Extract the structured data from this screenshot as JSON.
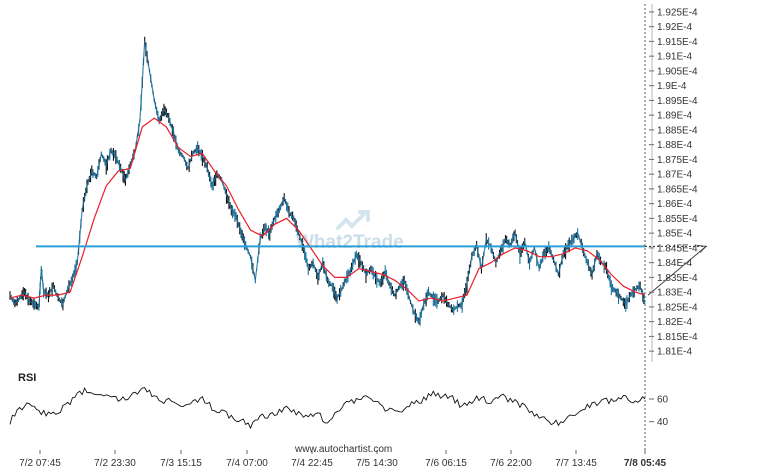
{
  "chart_data": {
    "type": "candlestick",
    "instrument": "",
    "y_axis": {
      "ticks": [
        0.0001925,
        0.000192,
        0.0001915,
        0.000191,
        0.0001905,
        0.00019,
        0.0001895,
        0.000189,
        0.0001885,
        0.000188,
        0.0001875,
        0.000187,
        0.0001865,
        0.000186,
        0.0001855,
        0.000185,
        0.0001845,
        0.000184,
        0.0001835,
        0.000183,
        0.0001825,
        0.000182,
        0.0001815,
        0.000181
      ],
      "tick_labels": [
        "1.925E-4",
        "1.92E-4",
        "1.915E-4",
        "1.91E-4",
        "1.905E-4",
        "1.9E-4",
        "1.895E-4",
        "1.89E-4",
        "1.885E-4",
        "1.88E-4",
        "1.875E-4",
        "1.87E-4",
        "1.865E-4",
        "1.86E-4",
        "1.855E-4",
        "1.85E-4",
        "1.845E-4",
        "1.84E-4",
        "1.835E-4",
        "1.83E-4",
        "1.825E-4",
        "1.82E-4",
        "1.815E-4",
        "1.81E-4"
      ],
      "range": [
        0.0001807,
        0.0001927
      ]
    },
    "x_axis": {
      "tick_labels": [
        "7/2 07:45",
        "7/2 23:30",
        "7/3 15:15",
        "7/4 07:00",
        "7/4 22:45",
        "7/5 14:30",
        "7/6 06:15",
        "7/6 22:00",
        "7/7 13:45",
        "7/8 05:45"
      ],
      "highlight_label": "7/8 05:45"
    },
    "price_path": [
      [
        0,
        0.0001829
      ],
      [
        2,
        0.0001826
      ],
      [
        4,
        0.0001828
      ],
      [
        6,
        0.000183
      ],
      [
        8,
        0.0001827
      ],
      [
        10,
        0.0001826
      ],
      [
        12,
        0.0001825
      ],
      [
        13,
        0.0001838
      ],
      [
        14,
        0.000183
      ],
      [
        16,
        0.0001829
      ],
      [
        18,
        0.0001832
      ],
      [
        20,
        0.0001828
      ],
      [
        22,
        0.0001826
      ],
      [
        24,
        0.0001831
      ],
      [
        26,
        0.0001835
      ],
      [
        28,
        0.000184
      ],
      [
        30,
        0.0001858
      ],
      [
        32,
        0.0001866
      ],
      [
        34,
        0.0001871
      ],
      [
        36,
        0.0001869
      ],
      [
        38,
        0.0001877
      ],
      [
        40,
        0.0001873
      ],
      [
        42,
        0.0001878
      ],
      [
        44,
        0.0001876
      ],
      [
        46,
        0.0001872
      ],
      [
        48,
        0.0001868
      ],
      [
        50,
        0.0001873
      ],
      [
        52,
        0.0001878
      ],
      [
        54,
        0.0001888
      ],
      [
        56,
        0.0001915
      ],
      [
        58,
        0.0001905
      ],
      [
        60,
        0.0001895
      ],
      [
        62,
        0.0001888
      ],
      [
        64,
        0.0001892
      ],
      [
        66,
        0.0001889
      ],
      [
        68,
        0.0001884
      ],
      [
        70,
        0.0001878
      ],
      [
        72,
        0.0001876
      ],
      [
        74,
        0.0001872
      ],
      [
        76,
        0.0001877
      ],
      [
        78,
        0.0001879
      ],
      [
        80,
        0.0001876
      ],
      [
        82,
        0.0001872
      ],
      [
        84,
        0.0001866
      ],
      [
        86,
        0.000187
      ],
      [
        88,
        0.0001868
      ],
      [
        90,
        0.0001863
      ],
      [
        92,
        0.0001858
      ],
      [
        94,
        0.0001856
      ],
      [
        96,
        0.000185
      ],
      [
        98,
        0.0001846
      ],
      [
        100,
        0.0001842
      ],
      [
        102,
        0.0001834
      ],
      [
        104,
        0.0001848
      ],
      [
        106,
        0.0001852
      ],
      [
        108,
        0.000185
      ],
      [
        110,
        0.0001855
      ],
      [
        112,
        0.0001858
      ],
      [
        114,
        0.0001862
      ],
      [
        116,
        0.0001857
      ],
      [
        118,
        0.0001855
      ],
      [
        120,
        0.000185
      ],
      [
        122,
        0.0001845
      ],
      [
        124,
        0.0001838
      ],
      [
        126,
        0.000184
      ],
      [
        128,
        0.0001835
      ],
      [
        130,
        0.000184
      ],
      [
        132,
        0.0001834
      ],
      [
        134,
        0.0001832
      ],
      [
        136,
        0.0001828
      ],
      [
        138,
        0.0001831
      ],
      [
        140,
        0.0001835
      ],
      [
        142,
        0.0001838
      ],
      [
        144,
        0.0001843
      ],
      [
        146,
        0.000184
      ],
      [
        148,
        0.0001836
      ],
      [
        150,
        0.0001838
      ],
      [
        152,
        0.0001835
      ],
      [
        154,
        0.0001833
      ],
      [
        156,
        0.0001837
      ],
      [
        158,
        0.0001832
      ],
      [
        160,
        0.0001829
      ],
      [
        162,
        0.0001832
      ],
      [
        164,
        0.0001834
      ],
      [
        166,
        0.0001828
      ],
      [
        168,
        0.0001823
      ],
      [
        170,
        0.000182
      ],
      [
        172,
        0.0001826
      ],
      [
        174,
        0.000183
      ],
      [
        176,
        0.0001828
      ],
      [
        178,
        0.0001827
      ],
      [
        180,
        0.0001829
      ],
      [
        182,
        0.0001826
      ],
      [
        184,
        0.0001824
      ],
      [
        186,
        0.0001825
      ],
      [
        188,
        0.0001826
      ],
      [
        190,
        0.0001833
      ],
      [
        192,
        0.0001842
      ],
      [
        194,
        0.0001846
      ],
      [
        196,
        0.0001838
      ],
      [
        198,
        0.0001848
      ],
      [
        200,
        0.0001845
      ],
      [
        202,
        0.000184
      ],
      [
        204,
        0.0001844
      ],
      [
        206,
        0.0001848
      ],
      [
        208,
        0.0001846
      ],
      [
        210,
        0.000185
      ],
      [
        212,
        0.0001843
      ],
      [
        214,
        0.0001847
      ],
      [
        216,
        0.000184
      ],
      [
        218,
        0.0001845
      ],
      [
        220,
        0.0001838
      ],
      [
        222,
        0.0001843
      ],
      [
        224,
        0.0001845
      ],
      [
        226,
        0.0001841
      ],
      [
        228,
        0.0001836
      ],
      [
        230,
        0.0001843
      ],
      [
        232,
        0.0001846
      ],
      [
        234,
        0.0001848
      ],
      [
        236,
        0.000185
      ],
      [
        238,
        0.0001845
      ],
      [
        240,
        0.000184
      ],
      [
        242,
        0.0001836
      ],
      [
        244,
        0.0001843
      ],
      [
        246,
        0.000184
      ],
      [
        248,
        0.0001838
      ],
      [
        250,
        0.0001832
      ],
      [
        252,
        0.000183
      ],
      [
        254,
        0.0001828
      ],
      [
        256,
        0.0001826
      ],
      [
        258,
        0.0001829
      ],
      [
        260,
        0.0001831
      ],
      [
        262,
        0.0001832
      ],
      [
        264,
        0.0001826
      ]
    ],
    "moving_average": [
      [
        0,
        0.0001828
      ],
      [
        5,
        0.0001829
      ],
      [
        10,
        0.0001828
      ],
      [
        15,
        0.0001829
      ],
      [
        20,
        0.0001829
      ],
      [
        25,
        0.000183
      ],
      [
        30,
        0.0001842
      ],
      [
        35,
        0.0001855
      ],
      [
        40,
        0.0001866
      ],
      [
        45,
        0.0001871
      ],
      [
        50,
        0.0001872
      ],
      [
        55,
        0.0001886
      ],
      [
        60,
        0.0001889
      ],
      [
        65,
        0.0001886
      ],
      [
        70,
        0.0001879
      ],
      [
        75,
        0.0001876
      ],
      [
        80,
        0.0001877
      ],
      [
        85,
        0.0001871
      ],
      [
        90,
        0.0001866
      ],
      [
        95,
        0.0001858
      ],
      [
        100,
        0.0001851
      ],
      [
        105,
        0.0001849
      ],
      [
        110,
        0.0001853
      ],
      [
        115,
        0.0001855
      ],
      [
        120,
        0.0001851
      ],
      [
        125,
        0.0001845
      ],
      [
        130,
        0.0001839
      ],
      [
        135,
        0.0001835
      ],
      [
        140,
        0.0001835
      ],
      [
        145,
        0.0001838
      ],
      [
        150,
        0.0001837
      ],
      [
        155,
        0.0001836
      ],
      [
        160,
        0.0001834
      ],
      [
        165,
        0.0001831
      ],
      [
        170,
        0.0001827
      ],
      [
        175,
        0.0001828
      ],
      [
        180,
        0.0001827
      ],
      [
        185,
        0.0001828
      ],
      [
        190,
        0.0001829
      ],
      [
        195,
        0.0001838
      ],
      [
        200,
        0.000184
      ],
      [
        205,
        0.0001843
      ],
      [
        210,
        0.0001845
      ],
      [
        215,
        0.0001844
      ],
      [
        220,
        0.0001842
      ],
      [
        225,
        0.0001842
      ],
      [
        230,
        0.0001843
      ],
      [
        235,
        0.0001845
      ],
      [
        240,
        0.0001844
      ],
      [
        245,
        0.0001841
      ],
      [
        250,
        0.0001836
      ],
      [
        255,
        0.0001832
      ],
      [
        260,
        0.000183
      ],
      [
        264,
        0.0001829
      ]
    ],
    "moving_average_color": "#e8202a",
    "price_color": "#1b6f9a",
    "level": {
      "value": 0.00018455,
      "color": "#2a9fd8"
    },
    "projection": {
      "from": [
        264,
        0.0001829
      ],
      "to": [
        288,
        0.00018455
      ]
    },
    "rsi": {
      "title": "RSI",
      "ticks": [
        60,
        40
      ],
      "tick_labels": [
        "60",
        "40"
      ],
      "range": [
        30,
        75
      ],
      "color": "#111111",
      "values": [
        [
          0,
          40
        ],
        [
          4,
          52
        ],
        [
          8,
          55
        ],
        [
          12,
          50
        ],
        [
          16,
          46
        ],
        [
          20,
          48
        ],
        [
          24,
          55
        ],
        [
          28,
          65
        ],
        [
          32,
          68
        ],
        [
          36,
          62
        ],
        [
          40,
          66
        ],
        [
          44,
          60
        ],
        [
          48,
          62
        ],
        [
          52,
          64
        ],
        [
          56,
          70
        ],
        [
          60,
          63
        ],
        [
          64,
          58
        ],
        [
          68,
          60
        ],
        [
          72,
          52
        ],
        [
          76,
          56
        ],
        [
          80,
          60
        ],
        [
          84,
          52
        ],
        [
          88,
          48
        ],
        [
          92,
          44
        ],
        [
          96,
          42
        ],
        [
          100,
          36
        ],
        [
          104,
          44
        ],
        [
          108,
          46
        ],
        [
          112,
          48
        ],
        [
          116,
          52
        ],
        [
          120,
          47
        ],
        [
          124,
          44
        ],
        [
          128,
          46
        ],
        [
          132,
          40
        ],
        [
          136,
          50
        ],
        [
          140,
          56
        ],
        [
          144,
          60
        ],
        [
          148,
          60
        ],
        [
          152,
          58
        ],
        [
          156,
          52
        ],
        [
          160,
          48
        ],
        [
          164,
          52
        ],
        [
          168,
          56
        ],
        [
          172,
          60
        ],
        [
          176,
          64
        ],
        [
          180,
          62
        ],
        [
          184,
          60
        ],
        [
          188,
          54
        ],
        [
          192,
          58
        ],
        [
          196,
          62
        ],
        [
          200,
          56
        ],
        [
          204,
          62
        ],
        [
          208,
          60
        ],
        [
          212,
          55
        ],
        [
          216,
          50
        ],
        [
          220,
          44
        ],
        [
          224,
          40
        ],
        [
          228,
          38
        ],
        [
          232,
          42
        ],
        [
          236,
          50
        ],
        [
          240,
          54
        ],
        [
          244,
          56
        ],
        [
          248,
          58
        ],
        [
          252,
          60
        ],
        [
          256,
          62
        ],
        [
          260,
          58
        ],
        [
          264,
          60
        ]
      ]
    }
  },
  "watermark": "What2Trade",
  "source": "www.autochartist.com"
}
